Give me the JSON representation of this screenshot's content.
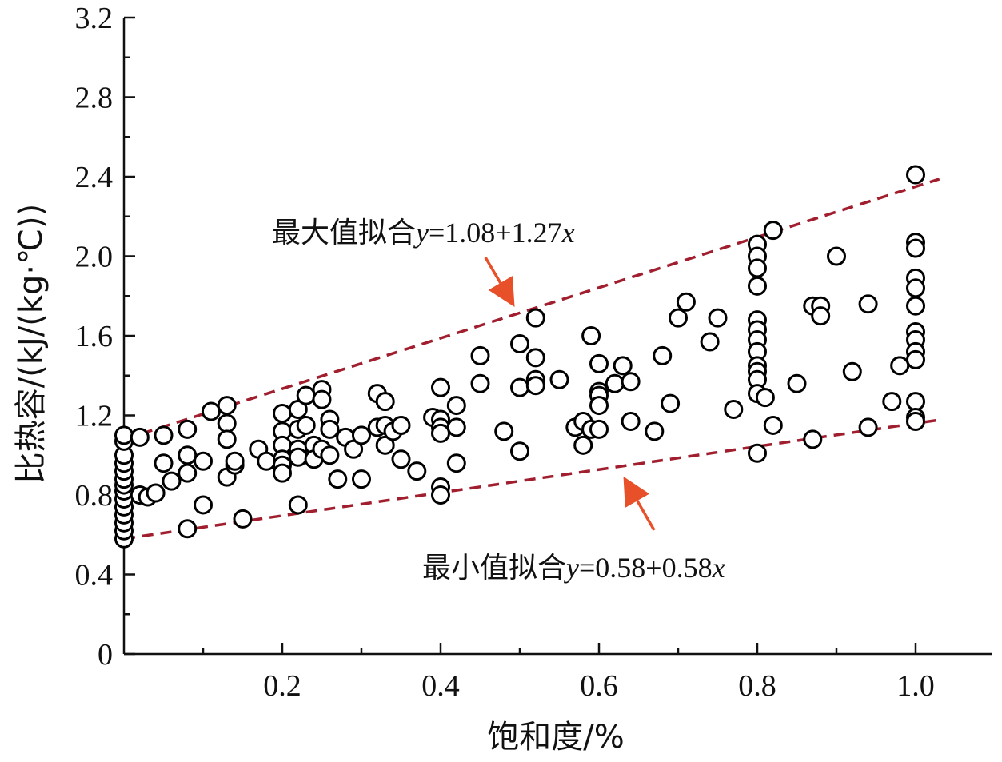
{
  "chart_data": {
    "type": "scatter",
    "xlabel": "饱和度/%",
    "ylabel": "比热容/(kJ/(kg·℃))",
    "xlim": [
      0,
      1.09
    ],
    "ylim": [
      0,
      3.2
    ],
    "x_ticks": [
      "0.2",
      "0.4",
      "0.6",
      "0.8",
      "1.0"
    ],
    "y_ticks": [
      "0",
      "0.4",
      "0.8",
      "1.2",
      "1.6",
      "2.0",
      "2.4",
      "2.8",
      "3.2"
    ],
    "marker": "open-circle",
    "grid": false,
    "colors": {
      "fit_lines": "#a01e2e",
      "arrows": "#e8502a",
      "markers": "#000000"
    },
    "fits": [
      {
        "prefix": "最大值拟合",
        "var_y": "y",
        "equation": "=1.08+1.27",
        "var_x": "x",
        "intercept": 1.08,
        "slope": 1.27,
        "x_range": [
          0,
          1.03
        ]
      },
      {
        "prefix": "最小值拟合",
        "var_y": "y",
        "equation": "=0.58+0.58",
        "var_x": "x",
        "intercept": 0.58,
        "slope": 0.58,
        "x_range": [
          0,
          1.03
        ]
      }
    ],
    "points": [
      [
        0.0,
        0.58
      ],
      [
        0.0,
        0.62
      ],
      [
        0.0,
        0.66
      ],
      [
        0.0,
        0.7
      ],
      [
        0.0,
        0.74
      ],
      [
        0.0,
        0.78
      ],
      [
        0.0,
        0.82
      ],
      [
        0.0,
        0.85
      ],
      [
        0.0,
        0.88
      ],
      [
        0.0,
        0.92
      ],
      [
        0.0,
        0.96
      ],
      [
        0.0,
        1.0
      ],
      [
        0.0,
        1.07
      ],
      [
        0.0,
        1.1
      ],
      [
        0.02,
        1.09
      ],
      [
        0.02,
        0.8
      ],
      [
        0.03,
        0.79
      ],
      [
        0.04,
        0.81
      ],
      [
        0.05,
        1.1
      ],
      [
        0.05,
        0.96
      ],
      [
        0.06,
        0.87
      ],
      [
        0.08,
        1.13
      ],
      [
        0.08,
        1.0
      ],
      [
        0.08,
        0.91
      ],
      [
        0.08,
        0.63
      ],
      [
        0.1,
        0.97
      ],
      [
        0.1,
        0.75
      ],
      [
        0.11,
        1.22
      ],
      [
        0.13,
        1.25
      ],
      [
        0.13,
        1.16
      ],
      [
        0.13,
        1.08
      ],
      [
        0.13,
        0.89
      ],
      [
        0.14,
        0.95
      ],
      [
        0.14,
        0.97
      ],
      [
        0.15,
        0.68
      ],
      [
        0.17,
        1.03
      ],
      [
        0.18,
        0.97
      ],
      [
        0.2,
        1.21
      ],
      [
        0.2,
        1.12
      ],
      [
        0.2,
        1.05
      ],
      [
        0.2,
        0.98
      ],
      [
        0.2,
        0.95
      ],
      [
        0.2,
        0.91
      ],
      [
        0.22,
        1.23
      ],
      [
        0.22,
        1.13
      ],
      [
        0.22,
        1.03
      ],
      [
        0.22,
        0.99
      ],
      [
        0.22,
        0.75
      ],
      [
        0.23,
        1.3
      ],
      [
        0.23,
        1.15
      ],
      [
        0.24,
        1.05
      ],
      [
        0.24,
        0.98
      ],
      [
        0.25,
        1.33
      ],
      [
        0.25,
        1.28
      ],
      [
        0.25,
        1.03
      ],
      [
        0.26,
        1.18
      ],
      [
        0.26,
        1.13
      ],
      [
        0.26,
        1.0
      ],
      [
        0.27,
        0.88
      ],
      [
        0.28,
        1.09
      ],
      [
        0.29,
        1.03
      ],
      [
        0.3,
        1.1
      ],
      [
        0.3,
        0.88
      ],
      [
        0.32,
        1.31
      ],
      [
        0.32,
        1.14
      ],
      [
        0.33,
        1.27
      ],
      [
        0.33,
        1.15
      ],
      [
        0.33,
        1.05
      ],
      [
        0.34,
        1.12
      ],
      [
        0.35,
        1.15
      ],
      [
        0.35,
        0.98
      ],
      [
        0.37,
        0.92
      ],
      [
        0.39,
        1.19
      ],
      [
        0.4,
        1.34
      ],
      [
        0.4,
        1.18
      ],
      [
        0.4,
        1.14
      ],
      [
        0.4,
        1.11
      ],
      [
        0.4,
        0.84
      ],
      [
        0.4,
        0.8
      ],
      [
        0.42,
        1.25
      ],
      [
        0.42,
        1.14
      ],
      [
        0.42,
        0.96
      ],
      [
        0.45,
        1.5
      ],
      [
        0.45,
        1.36
      ],
      [
        0.48,
        1.12
      ],
      [
        0.5,
        1.56
      ],
      [
        0.5,
        1.34
      ],
      [
        0.5,
        1.02
      ],
      [
        0.52,
        1.69
      ],
      [
        0.52,
        1.49
      ],
      [
        0.52,
        1.38
      ],
      [
        0.52,
        1.35
      ],
      [
        0.55,
        1.38
      ],
      [
        0.57,
        1.14
      ],
      [
        0.58,
        1.17
      ],
      [
        0.58,
        1.05
      ],
      [
        0.59,
        1.6
      ],
      [
        0.59,
        1.13
      ],
      [
        0.6,
        1.46
      ],
      [
        0.6,
        1.32
      ],
      [
        0.6,
        1.3
      ],
      [
        0.6,
        1.25
      ],
      [
        0.6,
        1.13
      ],
      [
        0.62,
        1.36
      ],
      [
        0.63,
        1.45
      ],
      [
        0.64,
        1.37
      ],
      [
        0.64,
        1.17
      ],
      [
        0.67,
        1.12
      ],
      [
        0.68,
        1.5
      ],
      [
        0.69,
        1.26
      ],
      [
        0.7,
        1.69
      ],
      [
        0.71,
        1.77
      ],
      [
        0.74,
        1.57
      ],
      [
        0.75,
        1.69
      ],
      [
        0.77,
        1.23
      ],
      [
        0.8,
        2.06
      ],
      [
        0.8,
        2.0
      ],
      [
        0.8,
        1.94
      ],
      [
        0.8,
        1.85
      ],
      [
        0.8,
        1.68
      ],
      [
        0.8,
        1.63
      ],
      [
        0.8,
        1.58
      ],
      [
        0.8,
        1.52
      ],
      [
        0.8,
        1.45
      ],
      [
        0.8,
        1.42
      ],
      [
        0.8,
        1.38
      ],
      [
        0.8,
        1.31
      ],
      [
        0.8,
        1.01
      ],
      [
        0.81,
        1.29
      ],
      [
        0.82,
        2.13
      ],
      [
        0.82,
        1.15
      ],
      [
        0.85,
        1.36
      ],
      [
        0.87,
        1.75
      ],
      [
        0.87,
        1.08
      ],
      [
        0.88,
        1.75
      ],
      [
        0.88,
        1.7
      ],
      [
        0.9,
        2.0
      ],
      [
        0.92,
        1.42
      ],
      [
        0.94,
        1.76
      ],
      [
        0.94,
        1.14
      ],
      [
        0.97,
        1.27
      ],
      [
        0.98,
        1.45
      ],
      [
        1.0,
        2.41
      ],
      [
        1.0,
        2.07
      ],
      [
        1.0,
        2.04
      ],
      [
        1.0,
        1.89
      ],
      [
        1.0,
        1.84
      ],
      [
        1.0,
        1.75
      ],
      [
        1.0,
        1.62
      ],
      [
        1.0,
        1.58
      ],
      [
        1.0,
        1.52
      ],
      [
        1.0,
        1.48
      ],
      [
        1.0,
        1.27
      ],
      [
        1.0,
        1.19
      ],
      [
        1.0,
        1.17
      ]
    ]
  }
}
